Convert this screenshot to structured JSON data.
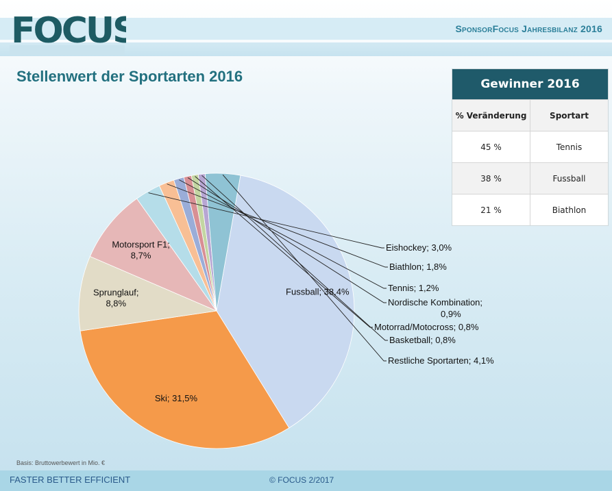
{
  "header": {
    "logo_text": "FOCUS",
    "report_title": "SponsorFocus Jahresbilanz 2016",
    "colors": {
      "logo": "#1d5b63",
      "accent": "#2b7f99"
    }
  },
  "page_title": "Stellenwert der Sportarten 2016",
  "winner_table": {
    "title": "Gewinner 2016",
    "columns": [
      "% Veränderung",
      "Sportart"
    ],
    "rows": [
      [
        "45 %",
        "Tennis"
      ],
      [
        "38 %",
        "Fussball"
      ],
      [
        "21 %",
        "Biathlon"
      ]
    ]
  },
  "chart_data": {
    "type": "pie",
    "slices": [
      {
        "label": "Fussball; 38,4%",
        "name": "Fussball",
        "value": 38.4,
        "color": "#c9d9f0"
      },
      {
        "label": "Ski; 31,5%",
        "name": "Ski",
        "value": 31.5,
        "color": "#f59a4a"
      },
      {
        "label": "Sprunglauf; 8,8%",
        "name": "Sprunglauf",
        "value": 8.8,
        "color": "#e2dcc7"
      },
      {
        "label": "Motorsport F1; 8,7%",
        "name": "Motorsport F1",
        "value": 8.7,
        "color": "#e6b7b7"
      },
      {
        "label": "Eishockey; 3,0%",
        "name": "Eishockey",
        "value": 3.0,
        "color": "#b5dde9"
      },
      {
        "label": "Biathlon; 1,8%",
        "name": "Biathlon",
        "value": 1.8,
        "color": "#f8bf95"
      },
      {
        "label": "Tennis; 1,2%",
        "name": "Tennis",
        "value": 1.2,
        "color": "#9aadd8"
      },
      {
        "label": "Nordische Kombination; 0,9%",
        "name": "Nordische Kombination",
        "value": 0.9,
        "color": "#d88f94"
      },
      {
        "label": "Motorrad/Motocross; 0,8%",
        "name": "Motorrad/Motocross",
        "value": 0.8,
        "color": "#c3d6a2"
      },
      {
        "label": "Basketball; 0,8%",
        "name": "Basketball",
        "value": 0.8,
        "color": "#b7a6d3"
      },
      {
        "label": "Restliche Sportarten; 4,1%",
        "name": "Restliche Sportarten",
        "value": 4.1,
        "color": "#8fc3d4"
      }
    ]
  },
  "basis_note": "Basis: Bruttowerbewert in Mio. €",
  "footer": {
    "left": "FASTER BETTER EFFICIENT",
    "center": "© FOCUS 2/2017"
  }
}
